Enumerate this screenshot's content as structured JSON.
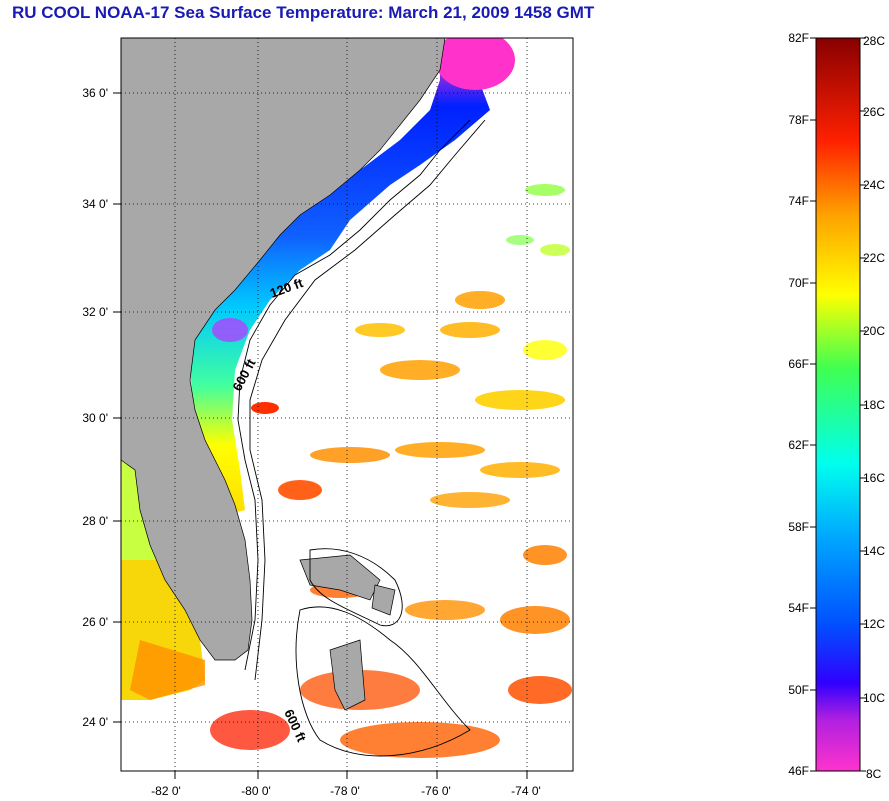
{
  "title": "RU COOL  NOAA-17  Sea Surface Temperature:  March 21, 2009 1458 GMT",
  "map": {
    "lat_labels": [
      "36 0'",
      "34 0'",
      "32 0'",
      "30 0'",
      "28 0'",
      "26 0'",
      "24 0'"
    ],
    "lon_labels": [
      "-82 0'",
      "-80 0'",
      "-78 0'",
      "-76 0'",
      "-74 0'"
    ],
    "contours": [
      "120 ft",
      "600 ft",
      "600 ft"
    ],
    "colors": {
      "land": "#a8a8a8",
      "ocean": "#ffffff",
      "grid": "#000000"
    }
  },
  "colorbar": {
    "f_labels": [
      "82F",
      "78F",
      "74F",
      "70F",
      "66F",
      "62F",
      "58F",
      "54F",
      "50F",
      "46F"
    ],
    "c_labels": [
      "28C",
      "26C",
      "24C",
      "22C",
      "20C",
      "18C",
      "16C",
      "14C",
      "12C",
      "10C",
      "8C"
    ],
    "range_c": [
      8,
      28
    ],
    "range_f": [
      46,
      82
    ],
    "colors": [
      "#ff33cc",
      "#a020f0",
      "#0000ff",
      "#00b0ff",
      "#00ffff",
      "#40ff40",
      "#ffff00",
      "#ff9900",
      "#ff0000",
      "#8b0000"
    ]
  }
}
